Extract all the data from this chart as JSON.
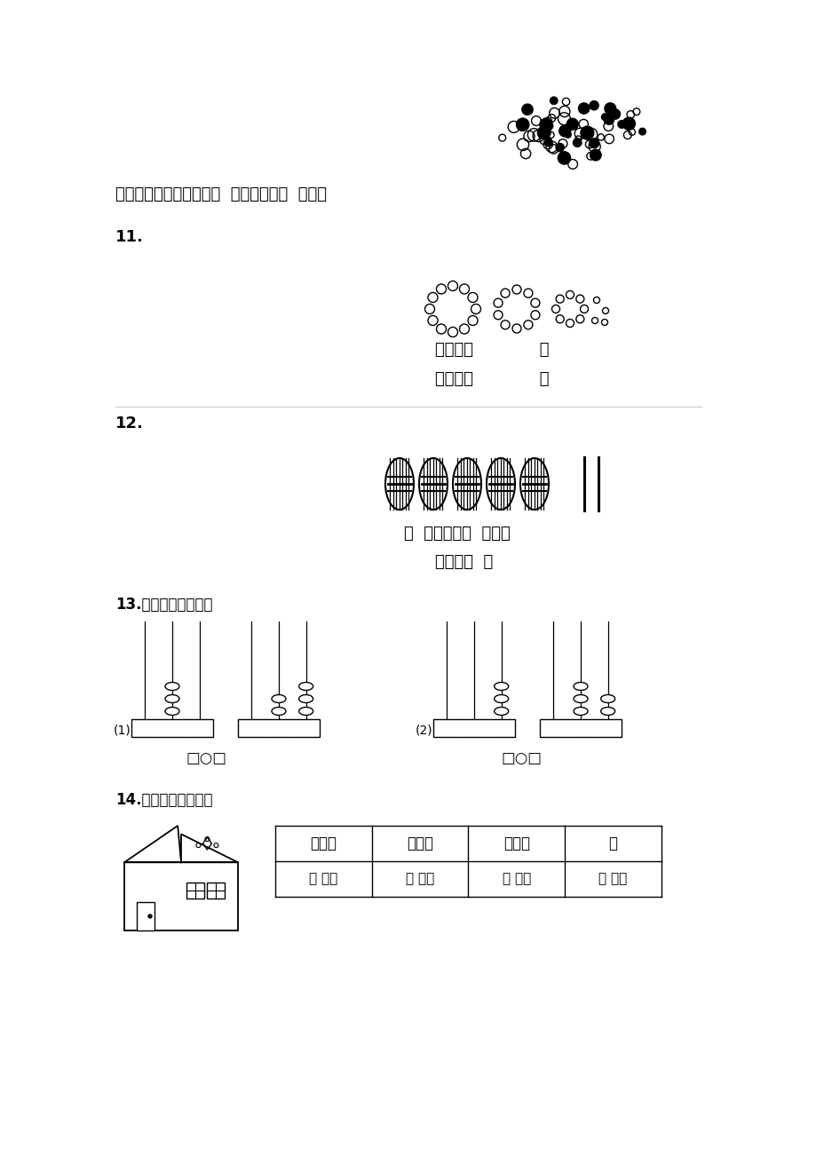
{
  "bg_color": "#ffffff",
  "line1": "先估一估，再数一数有（  ）个，读作（  ）个。",
  "label11": "11.",
  "label12": "12.",
  "label13": "13.填一填，比一比。",
  "label14": "14.数一数，填一填。",
  "write_label": "写作：（             ）",
  "read_label": "读作：（             ）",
  "tens_units": "（  ）个十和（  ）个一",
  "write2_label": "写作：（  ）",
  "table_headers": [
    "长方形",
    "正方形",
    "三角形",
    "圆"
  ],
  "table_row": [
    "（ ）个",
    "（ ）个",
    "（ ）个",
    "（ ）个"
  ],
  "compare1": "□○□",
  "compare2": "□○□"
}
